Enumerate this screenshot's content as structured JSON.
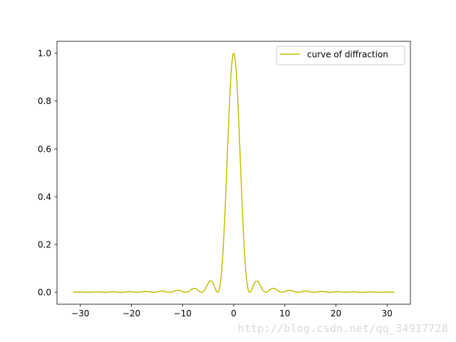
{
  "chart_data": {
    "type": "line",
    "title": "",
    "xlabel": "",
    "ylabel": "",
    "xlim": [
      -34.56,
      34.56
    ],
    "ylim": [
      -0.05,
      1.05
    ],
    "xticks": [
      -30,
      -20,
      -10,
      0,
      10,
      20,
      30
    ],
    "xtick_labels": [
      "−30",
      "−20",
      "−10",
      "0",
      "10",
      "20",
      "30"
    ],
    "yticks": [
      0.0,
      0.2,
      0.4,
      0.6,
      0.8,
      1.0
    ],
    "ytick_labels": [
      "0.0",
      "0.2",
      "0.4",
      "0.6",
      "0.8",
      "1.0"
    ],
    "grid": false,
    "legend_position": "top-right",
    "series": [
      {
        "name": "curve of diffraction",
        "color": "#bfbf00",
        "function": "(sin(x)/x)^2",
        "x_range": [
          -31.4,
          31.4
        ],
        "peak": {
          "x": 0,
          "y": 1.0
        },
        "side_lobes": [
          {
            "x": -4.49,
            "y": 0.047
          },
          {
            "x": 4.49,
            "y": 0.047
          },
          {
            "x": -7.73,
            "y": 0.016
          },
          {
            "x": 7.73,
            "y": 0.016
          }
        ]
      }
    ]
  },
  "watermark": "http://blog.csdn.net/qq_34917728"
}
